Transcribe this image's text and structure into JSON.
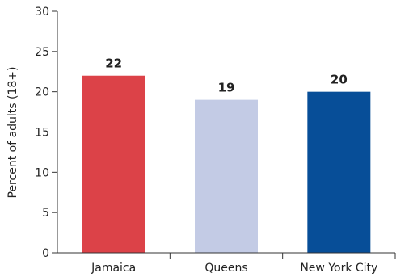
{
  "chart_data": {
    "type": "bar",
    "categories": [
      "Jamaica",
      "Queens",
      "New York City"
    ],
    "values": [
      22,
      19,
      20
    ],
    "data_labels": [
      "22",
      "19",
      "20"
    ],
    "colors": [
      "#dc4248",
      "#c3cbe5",
      "#074e98"
    ],
    "title": "",
    "xlabel": "",
    "ylabel": "Percent of adults (18+)",
    "ylim": [
      0,
      30
    ],
    "yticks": [
      0,
      5,
      10,
      15,
      20,
      25,
      30
    ],
    "ytick_labels": [
      "0",
      "5",
      "10",
      "15",
      "20",
      "25",
      "30"
    ],
    "grid": false,
    "legend": "none"
  }
}
